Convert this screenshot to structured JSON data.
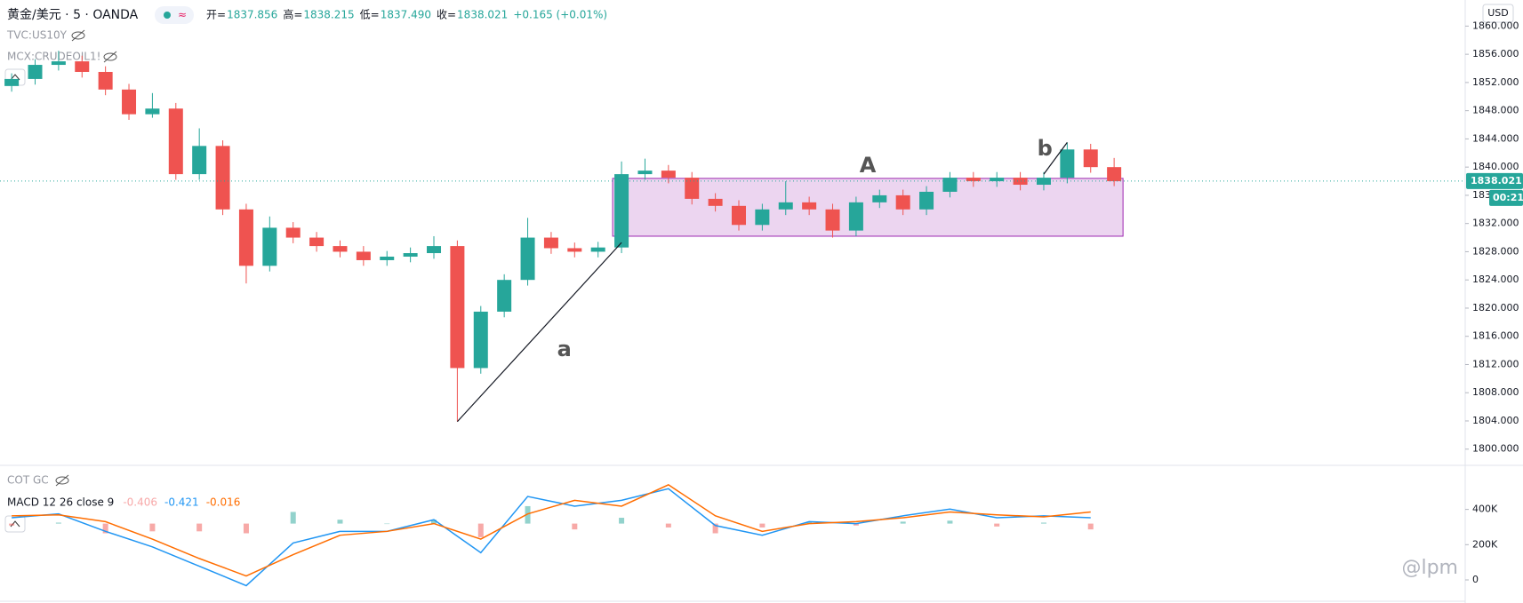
{
  "header": {
    "symbol": "黄金/美元 · 5 · OANDA",
    "ohlc": [
      {
        "label": "开=",
        "value": "1837.856"
      },
      {
        "label": "高=",
        "value": "1838.215"
      },
      {
        "label": "低=",
        "value": "1837.490"
      },
      {
        "label": "收=",
        "value": "1838.021"
      }
    ],
    "change": "+0.165 (+0.01%)",
    "overlays": [
      "TVC:US10Y",
      "MCX:CRUDEOIL1!"
    ]
  },
  "chart_data": [
    {
      "type": "candlestick",
      "currency": "USD",
      "open": [
        1851.5,
        1852.5,
        1854.5,
        1855,
        1853.5,
        1851,
        1847.5,
        1848.3,
        1839,
        1843,
        1834,
        1826,
        1831.4,
        1830,
        1828.8,
        1828,
        1826.8,
        1827.3,
        1827.8,
        1828.8,
        1811.5,
        1819.5,
        1824,
        1830,
        1828.5,
        1828,
        1828.6,
        1839,
        1839.5,
        1838.5,
        1835.5,
        1834.5,
        1831.8,
        1834,
        1835,
        1834,
        1831,
        1835,
        1836,
        1834,
        1836.5,
        1838.5,
        1838,
        1838.5,
        1837.5,
        1838.5,
        1842.5,
        1840
      ],
      "high": [
        1853.3,
        1855.3,
        1856.5,
        1855.8,
        1854.3,
        1851.8,
        1850.5,
        1849.1,
        1845.5,
        1843.8,
        1834.8,
        1833,
        1832.2,
        1830.8,
        1829.6,
        1828.8,
        1828.1,
        1828.6,
        1830.2,
        1829.6,
        1820.3,
        1824.8,
        1832.8,
        1830.8,
        1829.3,
        1829.4,
        1840.8,
        1841.2,
        1840.3,
        1839.3,
        1836.3,
        1835.3,
        1834.8,
        1838,
        1835.8,
        1834.8,
        1835.8,
        1836.8,
        1836.8,
        1837.3,
        1839.3,
        1839.3,
        1839.3,
        1839.3,
        1839.3,
        1843.5,
        1843.3,
        1841.3
      ],
      "low": [
        1850.7,
        1851.7,
        1853.7,
        1852.7,
        1850.2,
        1846.7,
        1847,
        1838.2,
        1838.2,
        1833.2,
        1823.5,
        1825.2,
        1829.2,
        1828,
        1827.2,
        1826,
        1826,
        1826.5,
        1827,
        1803.9,
        1810.7,
        1818.7,
        1823.2,
        1827.7,
        1827.2,
        1827.2,
        1827.8,
        1838.2,
        1837.7,
        1834.7,
        1833.7,
        1831,
        1831,
        1833.2,
        1833.2,
        1830,
        1830.2,
        1834.2,
        1833.2,
        1833.2,
        1835.7,
        1837.2,
        1837.2,
        1836.7,
        1836.7,
        1837.7,
        1839.2,
        1837.3
      ],
      "close": [
        1852.5,
        1854.5,
        1855,
        1853.5,
        1851,
        1847.5,
        1848.3,
        1839,
        1843,
        1834,
        1826,
        1831.4,
        1830,
        1828.8,
        1828,
        1826.8,
        1827.3,
        1827.8,
        1828.8,
        1811.5,
        1819.5,
        1824,
        1830,
        1828.5,
        1828,
        1828.6,
        1839,
        1839.5,
        1838.5,
        1835.5,
        1834.5,
        1831.8,
        1834,
        1835,
        1834,
        1831,
        1835,
        1836,
        1834,
        1836.5,
        1838.5,
        1838,
        1838.5,
        1837.5,
        1838.5,
        1842.5,
        1840,
        1838
      ],
      "up_color": "#26a69a",
      "down_color": "#ef5350",
      "ylim": [
        1797.7,
        1863.7
      ],
      "yticks": [
        {
          "value": 1800,
          "label": "1800.000"
        },
        {
          "value": 1804,
          "label": "1804.000"
        },
        {
          "value": 1808,
          "label": "1808.000"
        },
        {
          "value": 1812,
          "label": "1812.000"
        },
        {
          "value": 1816,
          "label": "1816.000"
        },
        {
          "value": 1820,
          "label": "1820.000"
        },
        {
          "value": 1824,
          "label": "1824.000"
        },
        {
          "value": 1828,
          "label": "1828.000"
        },
        {
          "value": 1832,
          "label": "1832.000"
        },
        {
          "value": 1836,
          "label": "1836.000"
        },
        {
          "value": 1840,
          "label": "1840.000"
        },
        {
          "value": 1844,
          "label": "1844.000"
        },
        {
          "value": 1848,
          "label": "1848.000"
        },
        {
          "value": 1852,
          "label": "1852.000"
        },
        {
          "value": 1856,
          "label": "1856.000"
        },
        {
          "value": 1860,
          "label": "1860.000"
        }
      ],
      "last_price": 1838.021,
      "countdown": "00:21",
      "box": {
        "label": "A",
        "from": 26,
        "to": 47,
        "top": 1838.4,
        "bottom": 1830.2
      },
      "trend_lines": [
        {
          "label": "a",
          "from": [
            19,
            1803.9
          ],
          "to": [
            26,
            1829.3
          ]
        },
        {
          "label": "b",
          "from": [
            44,
            1839
          ],
          "to": [
            45,
            1843.5
          ]
        }
      ]
    },
    {
      "type": "macd",
      "overlay": "COT GC",
      "title": "MACD 12 26 close 9",
      "readout": [
        {
          "value": -0.406,
          "color": "#f7a8a8"
        },
        {
          "value": -0.421,
          "color": "#2196f3"
        },
        {
          "value": -0.016,
          "color": "#ff6d00"
        }
      ],
      "ylim": [
        -3.5,
        2.5
      ],
      "series": [
        {
          "color": "#2196f3",
          "values": [
            0.3,
            0.5,
            -0.4,
            -1.2,
            -2.2,
            -3.2,
            -1.0,
            -0.4,
            -0.4,
            0.2,
            -1.5,
            1.4,
            0.9,
            1.2,
            1.8,
            -0.1,
            -0.6,
            0.1,
            0.0,
            0.4,
            0.75,
            0.3,
            0.4,
            0.3
          ]
        },
        {
          "color": "#ff6d00",
          "values": [
            0.4,
            0.45,
            0.1,
            -0.8,
            -1.8,
            -2.7,
            -1.6,
            -0.6,
            -0.4,
            0.0,
            -0.8,
            0.5,
            1.2,
            0.9,
            2.0,
            0.4,
            -0.4,
            0.0,
            0.1,
            0.3,
            0.6,
            0.45,
            0.35,
            0.6
          ]
        }
      ],
      "histogram": {
        "pos_color": "#26a69a",
        "neg_color": "#ef5350",
        "values": [
          -0.1,
          0.05,
          -0.5,
          -0.4,
          -0.4,
          -0.5,
          0.6,
          0.2,
          0,
          0.2,
          -0.7,
          0.9,
          -0.3,
          0.3,
          -0.2,
          -0.5,
          -0.2,
          0.1,
          -0.1,
          0.1,
          0.15,
          -0.15,
          0.05,
          -0.3
        ]
      },
      "y2lim": [
        -131000,
        650000
      ],
      "y2ticks": [
        {
          "value": 0,
          "label": "0"
        },
        {
          "value": 200000,
          "label": "200K"
        },
        {
          "value": 400000,
          "label": "400K"
        }
      ]
    }
  ],
  "watermark": "@lpm"
}
